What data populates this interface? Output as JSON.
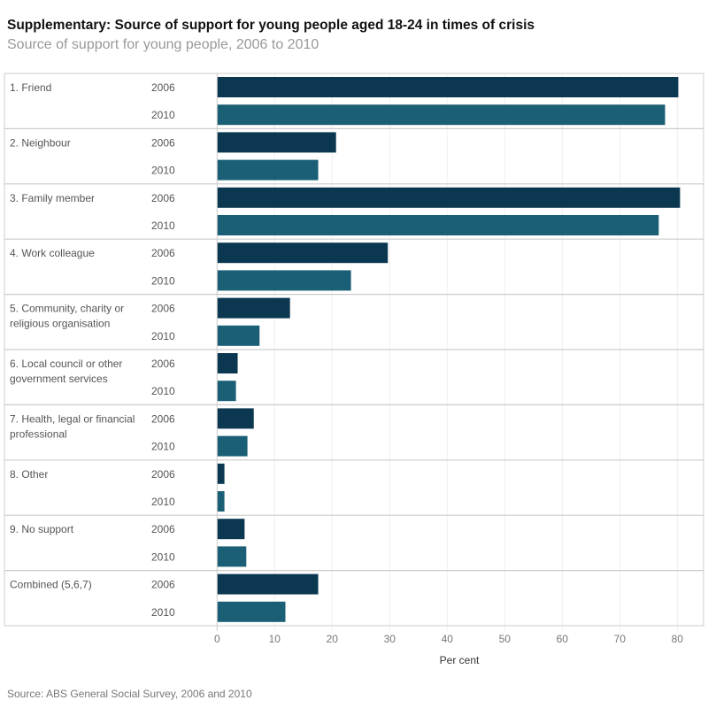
{
  "title": "Supplementary: Source of support for young people aged 18-24 in times of crisis",
  "subtitle": "Source of support for young people, 2006 to 2010",
  "source": "Source: ABS General Social Survey, 2006 and 2010",
  "chart_data": {
    "type": "bar",
    "orientation": "horizontal",
    "categories": [
      [
        "1. Friend"
      ],
      [
        "2. Neighbour"
      ],
      [
        "3. Family member"
      ],
      [
        "4. Work colleague"
      ],
      [
        "5. Community, charity or",
        "religious organisation"
      ],
      [
        "6. Local council or other",
        "government services"
      ],
      [
        "7. Health, legal or financial",
        "professional"
      ],
      [
        "8. Other"
      ],
      [
        "9. No support"
      ],
      [
        "Combined (5,6,7)"
      ]
    ],
    "series": [
      {
        "name": "2006",
        "color": "#0b3850",
        "values": [
          80.1,
          20.6,
          80.4,
          29.6,
          12.6,
          3.5,
          6.3,
          1.2,
          4.7,
          17.5
        ]
      },
      {
        "name": "2010",
        "color": "#1a5f75",
        "values": [
          77.8,
          17.5,
          76.7,
          23.2,
          7.3,
          3.2,
          5.2,
          1.2,
          5.0,
          11.8
        ]
      }
    ],
    "xlabel": "Per cent",
    "xlim": [
      0,
      84
    ],
    "xticks": [
      "0",
      "10",
      "20",
      "30",
      "40",
      "50",
      "60",
      "70",
      "80"
    ],
    "grid": true
  }
}
